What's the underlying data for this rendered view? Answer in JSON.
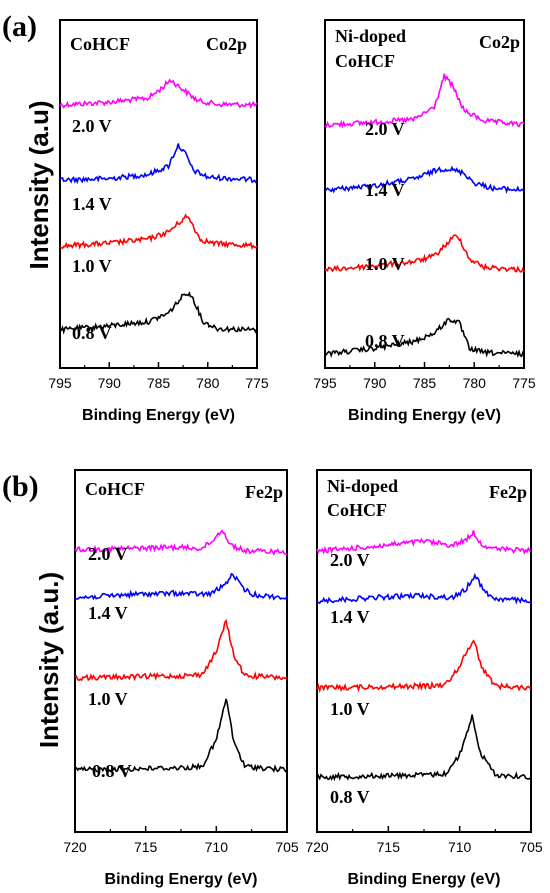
{
  "panel_labels": [
    "(a)",
    "(b)"
  ],
  "ylabels": [
    "Intensity (a.u)",
    "Intensity (a.u.)"
  ],
  "chart_data": [
    {
      "type": "line",
      "sample": "CoHCF",
      "peak_label": "Co2p",
      "xlabel": "Binding Energy (eV)",
      "xlim": [
        795,
        775
      ],
      "xticks": [
        "795",
        "790",
        "785",
        "780",
        "775"
      ],
      "series": [
        {
          "name": "2.0 V",
          "color": "#ff00ff",
          "x": [
            795,
            790,
            786,
            784.5,
            783.8,
            782.5,
            781,
            779,
            775
          ],
          "y": [
            0.0,
            0.2,
            0.5,
            1.3,
            1.8,
            1.1,
            0.3,
            0.05,
            0.0
          ]
        },
        {
          "name": "1.4 V",
          "color": "#0000ff",
          "x": [
            795,
            790,
            786,
            784,
            783,
            782.2,
            781.5,
            780,
            775
          ],
          "y": [
            0.0,
            0.1,
            0.4,
            1.0,
            2.5,
            1.8,
            0.7,
            0.2,
            0.0
          ]
        },
        {
          "name": "1.0 V",
          "color": "#ff0000",
          "x": [
            795,
            790,
            786,
            784,
            782.2,
            781.8,
            780.8,
            779.5,
            775
          ],
          "y": [
            0.0,
            0.2,
            0.5,
            1.0,
            2.1,
            1.9,
            0.5,
            0.2,
            0.0
          ]
        },
        {
          "name": "0.8 V",
          "color": "#000000",
          "x": [
            795,
            790,
            786,
            784,
            782.2,
            781.5,
            780.5,
            779,
            775
          ],
          "y": [
            0.0,
            0.3,
            0.6,
            1.2,
            2.7,
            2.3,
            0.6,
            0.1,
            0.0
          ]
        }
      ]
    },
    {
      "type": "line",
      "sample": "Ni-doped\nCoHCF",
      "peak_label": "Co2p",
      "xlabel": "Binding Energy (eV)",
      "xlim": [
        795,
        775
      ],
      "xticks": [
        "795",
        "790",
        "785",
        "780",
        "775"
      ],
      "series": [
        {
          "name": "2.0 V",
          "color": "#ff00ff",
          "x": [
            795,
            790,
            786,
            784,
            783,
            782.2,
            781,
            779,
            775
          ],
          "y": [
            0.0,
            0.2,
            0.4,
            1.3,
            3.5,
            2.8,
            1.0,
            0.3,
            0.0
          ]
        },
        {
          "name": "1.4 V",
          "color": "#0000ff",
          "x": [
            795,
            790,
            786,
            783.5,
            782.5,
            781,
            780,
            778,
            775
          ],
          "y": [
            0.0,
            0.3,
            0.8,
            1.5,
            1.5,
            1.2,
            0.5,
            0.1,
            0.0
          ]
        },
        {
          "name": "1.0 V",
          "color": "#ff0000",
          "x": [
            795,
            790,
            786,
            784,
            782,
            781.5,
            780.5,
            779,
            775
          ],
          "y": [
            0.0,
            0.3,
            0.6,
            1.0,
            2.4,
            2.3,
            0.8,
            0.2,
            0.0
          ]
        },
        {
          "name": "0.8 V",
          "color": "#000000",
          "x": [
            795,
            790,
            786,
            784,
            782.5,
            781.5,
            780.5,
            779,
            775
          ],
          "y": [
            0.0,
            0.4,
            0.9,
            1.5,
            2.5,
            2.2,
            0.4,
            0.1,
            0.0
          ]
        }
      ]
    },
    {
      "type": "line",
      "sample": "CoHCF",
      "peak_label": "Fe2p",
      "xlabel": "Binding Energy (eV)",
      "xlim": [
        720,
        705
      ],
      "xticks": [
        "720",
        "715",
        "710",
        "705"
      ],
      "series": [
        {
          "name": "2.0 V",
          "color": "#ff00ff",
          "x": [
            720,
            716,
            713,
            711,
            710.2,
            709.6,
            709,
            708,
            705
          ],
          "y": [
            0.2,
            0.3,
            0.4,
            0.3,
            1.0,
            1.9,
            0.6,
            0.1,
            0.0
          ]
        },
        {
          "name": "1.4 V",
          "color": "#0000ff",
          "x": [
            720,
            716,
            713,
            710.5,
            709.5,
            708.8,
            708.2,
            707.5,
            705
          ],
          "y": [
            0.0,
            0.3,
            0.4,
            0.3,
            1.0,
            2.0,
            0.9,
            0.3,
            0.0
          ]
        },
        {
          "name": "1.0 V",
          "color": "#ff0000",
          "x": [
            720,
            716,
            712,
            711,
            710,
            709.3,
            708.8,
            708,
            705
          ],
          "y": [
            0.0,
            0.1,
            0.2,
            0.3,
            2.2,
            4.8,
            2.0,
            0.2,
            0.0
          ]
        },
        {
          "name": "0.8 V",
          "color": "#000000",
          "x": [
            720,
            716,
            712,
            711,
            710,
            709.3,
            708.8,
            708,
            705
          ],
          "y": [
            0.0,
            0.1,
            0.2,
            0.3,
            2.5,
            6.0,
            2.5,
            0.3,
            0.0
          ]
        }
      ]
    },
    {
      "type": "line",
      "sample": "Ni-doped\nCoHCF",
      "peak_label": "Fe2p",
      "xlabel": "Binding Energy (eV)",
      "xlim": [
        720,
        705
      ],
      "xticks": [
        "720",
        "715",
        "710",
        "705"
      ],
      "series": [
        {
          "name": "2.0 V",
          "color": "#ff00ff",
          "x": [
            720,
            716,
            712.5,
            710.5,
            709.6,
            709,
            708.5,
            707.5,
            705
          ],
          "y": [
            0.0,
            0.4,
            0.9,
            0.5,
            1.0,
            1.7,
            0.6,
            0.2,
            0.0
          ]
        },
        {
          "name": "1.4 V",
          "color": "#0000ff",
          "x": [
            720,
            716,
            713,
            710.5,
            709.6,
            708.9,
            708.3,
            707.5,
            705
          ],
          "y": [
            0.0,
            0.3,
            0.5,
            0.3,
            1.0,
            2.4,
            0.9,
            0.2,
            0.0
          ]
        },
        {
          "name": "1.0 V",
          "color": "#ff0000",
          "x": [
            720,
            716,
            712,
            711,
            710,
            709,
            708.5,
            707.5,
            705
          ],
          "y": [
            0.0,
            0.1,
            0.2,
            0.3,
            2.0,
            4.5,
            2.0,
            0.2,
            0.0
          ]
        },
        {
          "name": "0.8 V",
          "color": "#000000",
          "x": [
            720,
            716,
            712,
            711,
            710,
            709.1,
            708.6,
            707.5,
            705
          ],
          "y": [
            0.0,
            0.1,
            0.2,
            0.3,
            2.0,
            5.6,
            2.3,
            0.2,
            0.0
          ]
        }
      ]
    }
  ]
}
